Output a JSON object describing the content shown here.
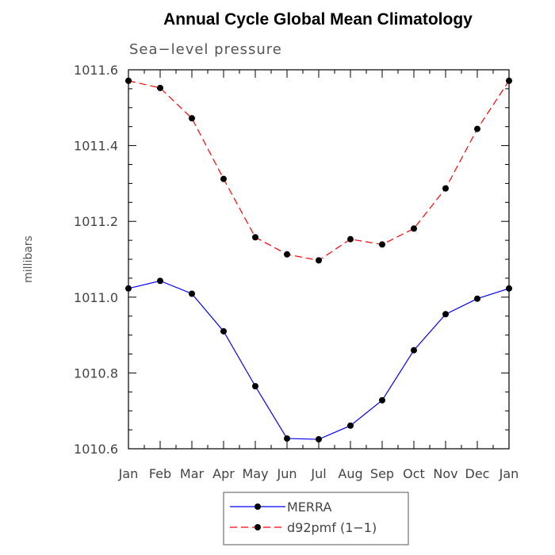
{
  "chart_data": {
    "type": "line",
    "title": "Annual Cycle Global Mean Climatology",
    "subtitle": "Sea−level pressure",
    "xlabel": "",
    "ylabel": "millibars",
    "categories": [
      "Jan",
      "Feb",
      "Mar",
      "Apr",
      "May",
      "Jun",
      "Jul",
      "Aug",
      "Sep",
      "Oct",
      "Nov",
      "Dec",
      "Jan"
    ],
    "ylim": [
      1010.6,
      1011.6
    ],
    "yticks": [
      "1010.6",
      "1010.8",
      "1011.0",
      "1011.2",
      "1011.4",
      "1011.6"
    ],
    "grid": false,
    "legend_position": "bottom",
    "series": [
      {
        "name": "MERRA",
        "color": "#0000ff",
        "line_style": "solid",
        "marker": "filled-circle",
        "values": [
          1011.023,
          1011.043,
          1011.009,
          1010.91,
          1010.765,
          1010.627,
          1010.625,
          1010.661,
          1010.728,
          1010.86,
          1010.955,
          1010.996,
          1011.023
        ]
      },
      {
        "name": "d92pmf (1−1)",
        "color": "#ff0000",
        "line_style": "dashed",
        "marker": "filled-circle",
        "values": [
          1011.571,
          1011.552,
          1011.472,
          1011.312,
          1011.158,
          1011.113,
          1011.097,
          1011.153,
          1011.139,
          1011.181,
          1011.287,
          1011.444,
          1011.571
        ]
      }
    ]
  }
}
